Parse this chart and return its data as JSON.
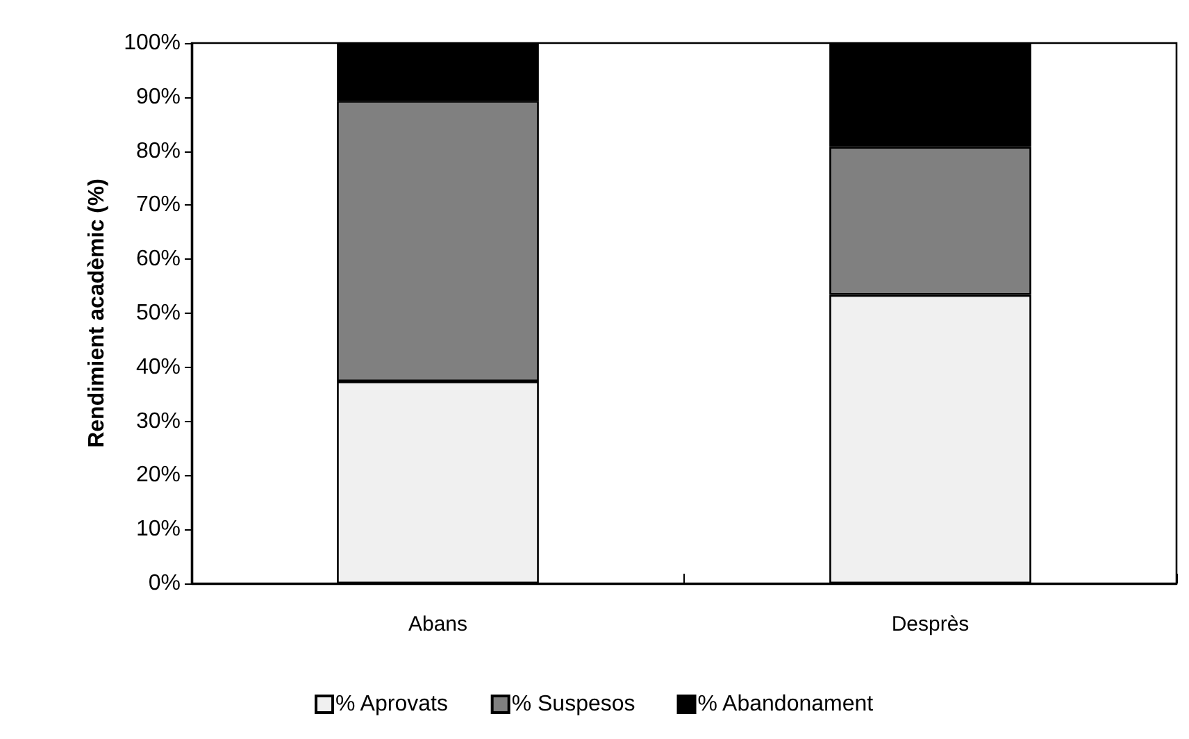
{
  "chart_data": {
    "type": "bar",
    "stacked": true,
    "ylabel": "Rendimient acadèmic (%)",
    "categories": [
      "Abans",
      "Desprès"
    ],
    "series": [
      {
        "name": "% Aprovats",
        "color": "#f0f0f0",
        "values": [
          37.4,
          53.4
        ]
      },
      {
        "name": "% Suspesos",
        "color": "#808080",
        "values": [
          51.9,
          27.4
        ]
      },
      {
        "name": "% Abandonament",
        "color": "#000000",
        "values": [
          10.7,
          19.2
        ]
      }
    ],
    "ylim": [
      0,
      100
    ],
    "yticks": [
      {
        "value": 0,
        "label": "0%"
      },
      {
        "value": 10,
        "label": "10%"
      },
      {
        "value": 20,
        "label": "20%"
      },
      {
        "value": 30,
        "label": "30%"
      },
      {
        "value": 40,
        "label": "40%"
      },
      {
        "value": 50,
        "label": "50%"
      },
      {
        "value": 60,
        "label": "60%"
      },
      {
        "value": 70,
        "label": "70%"
      },
      {
        "value": 80,
        "label": "80%"
      },
      {
        "value": 90,
        "label": "90%"
      },
      {
        "value": 100,
        "label": "100%"
      }
    ],
    "grid": false,
    "legend": "bottom"
  }
}
